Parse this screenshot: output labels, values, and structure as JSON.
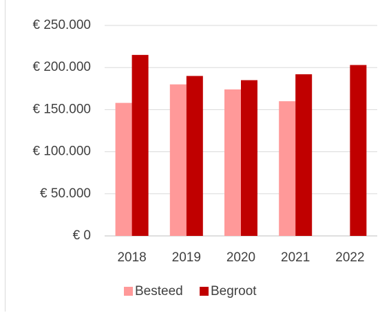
{
  "chart_data": {
    "type": "bar",
    "categories": [
      "2018",
      "2019",
      "2020",
      "2021",
      "2022"
    ],
    "series": [
      {
        "name": "Besteed",
        "color": "#ff9999",
        "values": [
          158000,
          180000,
          174000,
          160000,
          null
        ]
      },
      {
        "name": "Begroot",
        "color": "#c00000",
        "values": [
          215000,
          190000,
          185000,
          192000,
          203000
        ]
      }
    ],
    "ylim": [
      0,
      250000
    ],
    "yticks": [
      {
        "value": 0,
        "label": "€ 0"
      },
      {
        "value": 50000,
        "label": "€ 50.000"
      },
      {
        "value": 100000,
        "label": "€ 100.000"
      },
      {
        "value": 150000,
        "label": "€ 150.000"
      },
      {
        "value": 200000,
        "label": "€ 200.000"
      },
      {
        "value": 250000,
        "label": "€ 250.000"
      }
    ],
    "grid": true,
    "legend": "bottom"
  }
}
